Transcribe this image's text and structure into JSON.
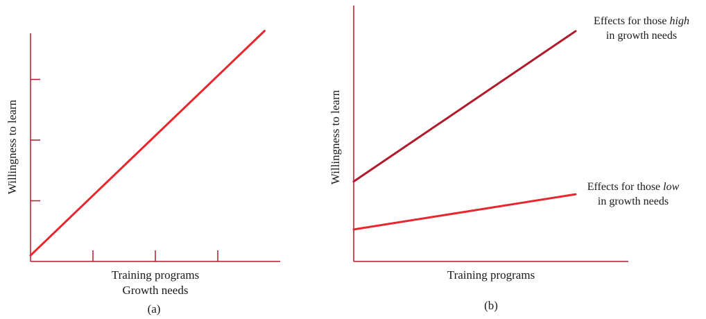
{
  "colors": {
    "axis": "#b01a2a",
    "high": "#b01a2a",
    "low": "#e8262e",
    "single": "#e8262e"
  },
  "chart_data": [
    {
      "type": "line",
      "panel_label": "(a)",
      "title": "",
      "xlabel": "Training programs",
      "xlabel_2": "Growth needs",
      "ylabel": "Willingness to learn",
      "xlim": [
        0,
        4
      ],
      "ylim": [
        0,
        4
      ],
      "x_ticks": [
        1,
        2,
        3
      ],
      "y_ticks": [
        1,
        2,
        3
      ],
      "series": [
        {
          "x": [
            0,
            3.75
          ],
          "y": [
            0.1,
            3.8
          ]
        }
      ]
    },
    {
      "type": "line",
      "panel_label": "(b)",
      "title": "",
      "xlabel": "Training programs",
      "ylabel": "Willingness to learn",
      "xlim": [
        0,
        4
      ],
      "ylim": [
        0,
        4
      ],
      "series": [
        {
          "annotation_prefix": "Effects for those ",
          "annotation_emph": "high",
          "annotation_line2": "in growth needs",
          "x": [
            0,
            3.2
          ],
          "y": [
            1.25,
            3.6
          ]
        },
        {
          "annotation_prefix": "Effects for those ",
          "annotation_emph": "low",
          "annotation_line2": "in growth needs",
          "x": [
            0,
            3.2
          ],
          "y": [
            0.5,
            1.05
          ]
        }
      ]
    }
  ]
}
